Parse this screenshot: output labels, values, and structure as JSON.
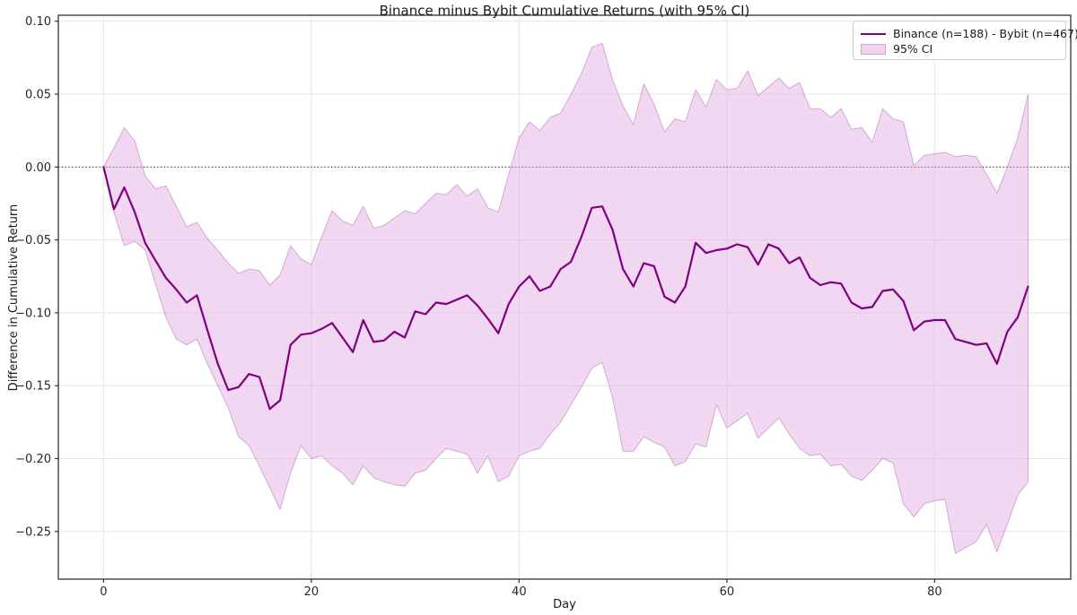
{
  "title": "Binance minus Bybit Cumulative Returns (with 95% CI)",
  "axes": {
    "xlabel": "Day",
    "ylabel": "Difference in Cumulative Return"
  },
  "legend": {
    "line_label": "Binance (n=188) - Bybit (n=467)",
    "band_label": "95% CI"
  },
  "colors": {
    "line": "#800080",
    "band_fill": "rgba(221,160,221,0.42)",
    "band_edge": "rgba(175,105,175,0.5)",
    "grid": "#e6e6e6",
    "zero_line": "#000000",
    "spine": "#333333",
    "tick_text": "#262626"
  },
  "chart_data": {
    "type": "line",
    "title": "Binance minus Bybit Cumulative Returns (with 95% CI)",
    "xlabel": "Day",
    "ylabel": "Difference in Cumulative Return",
    "grid": true,
    "zero_line": true,
    "legend_position": "upper right",
    "xlim": [
      -4.35,
      93.1
    ],
    "ylim": [
      -0.2827,
      0.1041
    ],
    "xticks": {
      "values": [
        0,
        20,
        40,
        60,
        80
      ],
      "labels": [
        "0",
        "20",
        "40",
        "60",
        "80"
      ]
    },
    "yticks": {
      "values": [
        0.1,
        0.05,
        0.0,
        -0.05,
        -0.1,
        -0.15,
        -0.2,
        -0.25
      ],
      "labels": [
        "0.10",
        "0.05",
        "0.00",
        "−0.05",
        "−0.10",
        "−0.15",
        "−0.20",
        "−0.25"
      ]
    },
    "x": [
      0,
      1,
      2,
      3,
      4,
      5,
      6,
      7,
      8,
      9,
      10,
      11,
      12,
      13,
      14,
      15,
      16,
      17,
      18,
      19,
      20,
      21,
      22,
      23,
      24,
      25,
      26,
      27,
      28,
      29,
      30,
      31,
      32,
      33,
      34,
      35,
      36,
      37,
      38,
      39,
      40,
      41,
      42,
      43,
      44,
      45,
      46,
      47,
      48,
      49,
      50,
      51,
      52,
      53,
      54,
      55,
      56,
      57,
      58,
      59,
      60,
      61,
      62,
      63,
      64,
      65,
      66,
      67,
      68,
      69,
      70,
      71,
      72,
      73,
      74,
      75,
      76,
      77,
      78,
      79,
      80,
      81,
      82,
      83,
      84,
      85,
      86,
      87,
      88,
      89
    ],
    "series": [
      {
        "name": "Binance (n=188) - Bybit (n=467)",
        "role": "mean",
        "values": [
          0.0,
          -0.029,
          -0.014,
          -0.031,
          -0.052,
          -0.064,
          -0.076,
          -0.084,
          -0.093,
          -0.088,
          -0.112,
          -0.135,
          -0.153,
          -0.151,
          -0.142,
          -0.144,
          -0.166,
          -0.16,
          -0.122,
          -0.115,
          -0.114,
          -0.111,
          -0.107,
          -0.117,
          -0.127,
          -0.105,
          -0.12,
          -0.119,
          -0.113,
          -0.117,
          -0.099,
          -0.101,
          -0.093,
          -0.094,
          -0.091,
          -0.088,
          -0.095,
          -0.104,
          -0.114,
          -0.094,
          -0.082,
          -0.075,
          -0.085,
          -0.082,
          -0.07,
          -0.065,
          -0.048,
          -0.028,
          -0.027,
          -0.043,
          -0.07,
          -0.082,
          -0.066,
          -0.068,
          -0.089,
          -0.093,
          -0.082,
          -0.052,
          -0.059,
          -0.057,
          -0.056,
          -0.053,
          -0.055,
          -0.067,
          -0.053,
          -0.056,
          -0.066,
          -0.062,
          -0.076,
          -0.081,
          -0.079,
          -0.08,
          -0.093,
          -0.097,
          -0.096,
          -0.085,
          -0.084,
          -0.092,
          -0.112,
          -0.106,
          -0.105,
          -0.105,
          -0.118,
          -0.12,
          -0.122,
          -0.121,
          -0.135,
          -0.113,
          -0.103,
          -0.082
        ]
      },
      {
        "name": "95% CI upper",
        "role": "ci_upper",
        "values": [
          0.0,
          0.013,
          0.027,
          0.018,
          -0.006,
          -0.015,
          -0.013,
          -0.027,
          -0.041,
          -0.038,
          -0.049,
          -0.057,
          -0.066,
          -0.073,
          -0.07,
          -0.071,
          -0.081,
          -0.074,
          -0.054,
          -0.063,
          -0.067,
          -0.048,
          -0.03,
          -0.037,
          -0.04,
          -0.027,
          -0.042,
          -0.04,
          -0.035,
          -0.03,
          -0.032,
          -0.025,
          -0.018,
          -0.019,
          -0.012,
          -0.02,
          -0.015,
          -0.028,
          -0.031,
          -0.005,
          0.02,
          0.031,
          0.025,
          0.034,
          0.037,
          0.05,
          0.064,
          0.082,
          0.085,
          0.06,
          0.042,
          0.029,
          0.057,
          0.043,
          0.024,
          0.033,
          0.031,
          0.053,
          0.041,
          0.06,
          0.053,
          0.054,
          0.066,
          0.049,
          0.055,
          0.061,
          0.054,
          0.058,
          0.04,
          0.04,
          0.034,
          0.04,
          0.026,
          0.027,
          0.017,
          0.04,
          0.033,
          0.031,
          0.001,
          0.008,
          0.009,
          0.01,
          0.007,
          0.008,
          0.007,
          -0.005,
          -0.018,
          0.0,
          0.02,
          0.05
        ]
      },
      {
        "name": "95% CI lower",
        "role": "ci_lower",
        "values": [
          0.0,
          -0.031,
          -0.054,
          -0.051,
          -0.057,
          -0.08,
          -0.103,
          -0.118,
          -0.122,
          -0.118,
          -0.135,
          -0.15,
          -0.165,
          -0.185,
          -0.191,
          -0.205,
          -0.22,
          -0.235,
          -0.21,
          -0.191,
          -0.2,
          -0.198,
          -0.205,
          -0.21,
          -0.218,
          -0.205,
          -0.213,
          -0.216,
          -0.218,
          -0.219,
          -0.21,
          -0.208,
          -0.2,
          -0.193,
          -0.195,
          -0.197,
          -0.21,
          -0.198,
          -0.216,
          -0.212,
          -0.198,
          -0.195,
          -0.193,
          -0.183,
          -0.175,
          -0.163,
          -0.151,
          -0.138,
          -0.134,
          -0.158,
          -0.195,
          -0.195,
          -0.185,
          -0.189,
          -0.192,
          -0.205,
          -0.202,
          -0.19,
          -0.192,
          -0.163,
          -0.179,
          -0.174,
          -0.169,
          -0.186,
          -0.179,
          -0.172,
          -0.183,
          -0.193,
          -0.198,
          -0.197,
          -0.205,
          -0.204,
          -0.212,
          -0.215,
          -0.208,
          -0.2,
          -0.203,
          -0.231,
          -0.24,
          -0.231,
          -0.229,
          -0.228,
          -0.265,
          -0.261,
          -0.257,
          -0.245,
          -0.264,
          -0.245,
          -0.225,
          -0.216
        ]
      }
    ]
  }
}
